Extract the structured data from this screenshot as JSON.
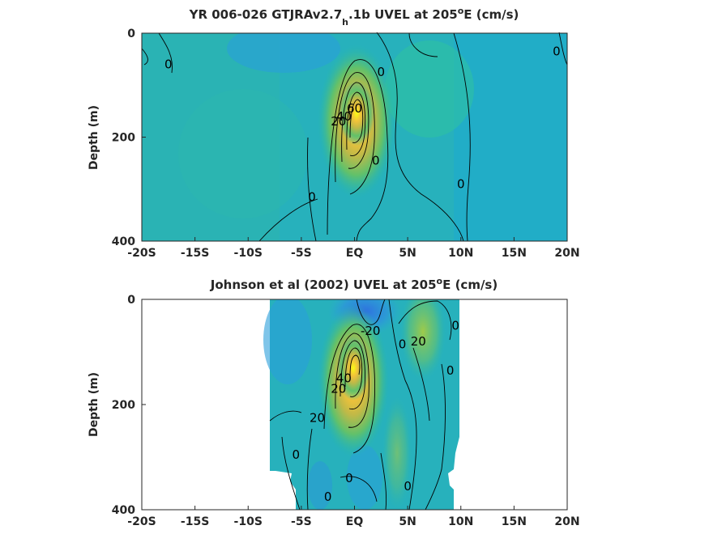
{
  "chart_data": [
    {
      "type": "heatmap",
      "title": {
        "pre": "YR 006-026 GTJRAv2.7",
        "sub": "h",
        "mid": ".1b UVEL at 205",
        "sup": "o",
        "post": "E (cm/s)"
      },
      "ylabel": "Depth (m)",
      "xlim": [
        -20,
        20
      ],
      "ylim": [
        0,
        400
      ],
      "x_ticks": [
        {
          "v": -20,
          "label": "-20S"
        },
        {
          "v": -15,
          "label": "-15S"
        },
        {
          "v": -10,
          "label": "-10S"
        },
        {
          "v": -5,
          "label": "-5S"
        },
        {
          "v": 0,
          "label": "EQ"
        },
        {
          "v": 5,
          "label": "5N"
        },
        {
          "v": 10,
          "label": "10N"
        },
        {
          "v": 15,
          "label": "15N"
        },
        {
          "v": 20,
          "label": "20N"
        }
      ],
      "y_ticks": [
        {
          "v": 0,
          "label": "0"
        },
        {
          "v": 200,
          "label": "200"
        },
        {
          "v": 400,
          "label": "400"
        }
      ],
      "data_extent": {
        "lat": [
          -20,
          20
        ],
        "depth": [
          0,
          400
        ]
      },
      "colormap": "parula",
      "features": [
        {
          "name": "EUC core",
          "lat": 0.0,
          "depth": 150,
          "max_cm_s": 100
        }
      ],
      "contour_labels": [
        {
          "lat": -17.5,
          "depth": 60,
          "text": "0"
        },
        {
          "lat": 2.5,
          "depth": 75,
          "text": "0"
        },
        {
          "lat": 19,
          "depth": 35,
          "text": "0"
        },
        {
          "lat": 0.0,
          "depth": 145,
          "text": "60"
        },
        {
          "lat": -1.0,
          "depth": 160,
          "text": "40"
        },
        {
          "lat": -1.5,
          "depth": 170,
          "text": "20"
        },
        {
          "lat": 2.0,
          "depth": 245,
          "text": "0"
        },
        {
          "lat": -4.0,
          "depth": 315,
          "text": "0"
        },
        {
          "lat": 10.0,
          "depth": 290,
          "text": "0"
        }
      ]
    },
    {
      "type": "heatmap",
      "title": {
        "pre": "Johnson et al (2002) UVEL at 205",
        "sub": "",
        "mid": "",
        "sup": "o",
        "post": "E (cm/s)"
      },
      "ylabel": "Depth (m)",
      "xlim": [
        -20,
        20
      ],
      "ylim": [
        0,
        400
      ],
      "x_ticks": [
        {
          "v": -20,
          "label": "-20S"
        },
        {
          "v": -15,
          "label": "-15S"
        },
        {
          "v": -10,
          "label": "-10S"
        },
        {
          "v": -5,
          "label": "-5S"
        },
        {
          "v": 0,
          "label": "EQ"
        },
        {
          "v": 5,
          "label": "5N"
        },
        {
          "v": 10,
          "label": "10N"
        },
        {
          "v": 15,
          "label": "15N"
        },
        {
          "v": 20,
          "label": "20N"
        }
      ],
      "y_ticks": [
        {
          "v": 0,
          "label": "0"
        },
        {
          "v": 200,
          "label": "200"
        },
        {
          "v": 400,
          "label": "400"
        }
      ],
      "data_extent": {
        "lat": [
          -8,
          10
        ],
        "depth": [
          0,
          400
        ]
      },
      "colormap": "parula",
      "features": [
        {
          "name": "EUC core",
          "lat": 0.0,
          "depth": 140,
          "max_cm_s": 100
        },
        {
          "name": "SEC westward jet",
          "lat": 2.5,
          "depth": 20,
          "min_cm_s": -40
        }
      ],
      "contour_labels": [
        {
          "lat": 1.5,
          "depth": 60,
          "text": "-20"
        },
        {
          "lat": 6.0,
          "depth": 80,
          "text": "20"
        },
        {
          "lat": 9.5,
          "depth": 50,
          "text": "0"
        },
        {
          "lat": 4.5,
          "depth": 85,
          "text": "0"
        },
        {
          "lat": 9.0,
          "depth": 135,
          "text": "0"
        },
        {
          "lat": -1.0,
          "depth": 150,
          "text": "40"
        },
        {
          "lat": -1.5,
          "depth": 170,
          "text": "20"
        },
        {
          "lat": -3.5,
          "depth": 225,
          "text": "20"
        },
        {
          "lat": -5.5,
          "depth": 295,
          "text": "0"
        },
        {
          "lat": -0.5,
          "depth": 340,
          "text": "0"
        },
        {
          "lat": 5.0,
          "depth": 355,
          "text": "0"
        },
        {
          "lat": -2.5,
          "depth": 375,
          "text": "0"
        }
      ]
    }
  ]
}
